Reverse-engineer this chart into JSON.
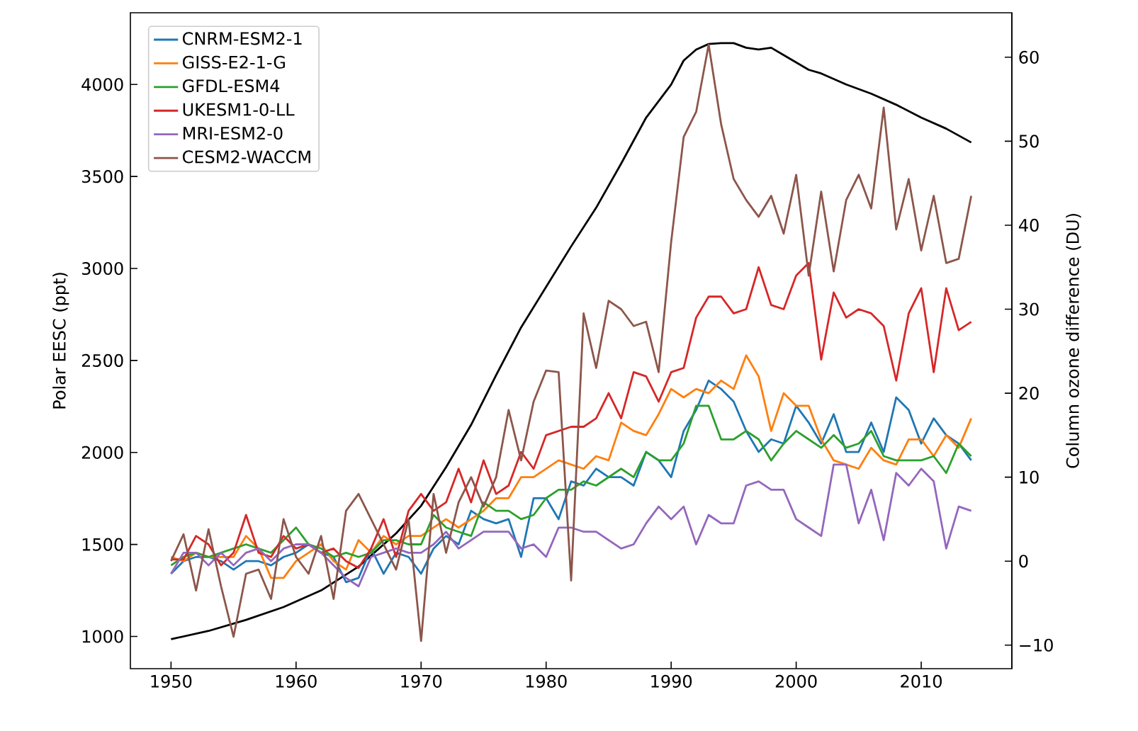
{
  "chart_data": {
    "type": "line",
    "ylabel": "Polar EESC (ppt)",
    "y2label": "Column ozone difference (DU)",
    "x": [
      1950,
      1951,
      1952,
      1953,
      1954,
      1955,
      1956,
      1957,
      1958,
      1959,
      1960,
      1961,
      1962,
      1963,
      1964,
      1965,
      1966,
      1967,
      1968,
      1969,
      1970,
      1971,
      1972,
      1973,
      1974,
      1975,
      1976,
      1977,
      1978,
      1979,
      1980,
      1981,
      1982,
      1983,
      1984,
      1985,
      1986,
      1987,
      1988,
      1989,
      1990,
      1991,
      1992,
      1993,
      1994,
      1995,
      1996,
      1997,
      1998,
      1999,
      2000,
      2001,
      2002,
      2003,
      2004,
      2005,
      2006,
      2007,
      2008,
      2009,
      2010,
      2011,
      2012,
      2013,
      2014
    ],
    "xlim": [
      1946.75,
      2017.25
    ],
    "xticks": [
      1950,
      1960,
      1970,
      1980,
      1990,
      2000,
      2010
    ],
    "ylim": [
      825,
      4390
    ],
    "yticks": [
      1000,
      1500,
      2000,
      2500,
      3000,
      3500,
      4000
    ],
    "y2lim": [
      -12.8,
      65.3
    ],
    "y2ticks": [
      {
        "value": -10,
        "label": "−10"
      },
      0,
      10,
      20,
      30,
      40,
      50,
      60
    ],
    "legend": "top left",
    "series": [
      {
        "color": "#000000",
        "x": [
          1950,
          1953,
          1956,
          1959,
          1962,
          1965,
          1968,
          1970,
          1972,
          1974,
          1976,
          1978,
          1980,
          1982,
          1984,
          1986,
          1988,
          1990,
          1991,
          1992,
          1993,
          1994,
          1995,
          1996,
          1997,
          1998,
          1999,
          2000,
          2001,
          2002,
          2004,
          2006,
          2008,
          2010,
          2012,
          2014
        ],
        "values": [
          985,
          1030,
          1090,
          1160,
          1250,
          1380,
          1560,
          1710,
          1920,
          2150,
          2420,
          2680,
          2900,
          3120,
          3330,
          3570,
          3820,
          4000,
          4130,
          4190,
          4220,
          4225,
          4225,
          4200,
          4190,
          4200,
          4160,
          4120,
          4080,
          4060,
          4000,
          3950,
          3890,
          3820,
          3760,
          3685
        ]
      },
      {
        "name": "CNRM-ESM2-1",
        "color": "#1f77b4",
        "axis": "y2",
        "values": [
          -1.5,
          0,
          0.5,
          0.5,
          0,
          -1,
          0,
          0,
          -0.5,
          0.5,
          1,
          2,
          1,
          0.5,
          -2.5,
          -2,
          1.5,
          -1.5,
          1,
          0.5,
          -1.5,
          1.5,
          3,
          2,
          6,
          5,
          4.5,
          5,
          0.5,
          7.5,
          7.5,
          5,
          9.5,
          9,
          11,
          10,
          10,
          9,
          13,
          12,
          10,
          15.5,
          18,
          21.5,
          20.5,
          19,
          15.5,
          13,
          14.5,
          14,
          18.5,
          16.5,
          14,
          17.5,
          13,
          13,
          16.5,
          13,
          19.5,
          18,
          14,
          17,
          15,
          14,
          12
        ]
      },
      {
        "name": "GISS-E2-1-G",
        "color": "#ff7f0e",
        "axis": "y2",
        "values": [
          0.5,
          0,
          1,
          0.5,
          0.5,
          0.5,
          3,
          1.5,
          -2,
          -2,
          0,
          1,
          2,
          0,
          -1,
          2.5,
          1,
          3,
          2,
          3,
          3,
          4,
          5,
          4,
          5,
          6,
          7.5,
          7.5,
          10,
          10,
          11,
          12,
          11.5,
          11,
          12.5,
          12,
          16.5,
          15.5,
          15,
          17.5,
          20.5,
          19.5,
          20.5,
          20,
          21.5,
          20.5,
          24.5,
          22,
          15.5,
          20,
          18.5,
          18.5,
          14.5,
          12,
          11.5,
          11,
          13.5,
          12,
          11.5,
          14.5,
          14.5,
          12.5,
          15,
          13.5,
          17
        ]
      },
      {
        "name": "GFDL-ESM4",
        "color": "#2ca02c",
        "axis": "y2",
        "values": [
          -0.5,
          0.5,
          1,
          0.5,
          1,
          1.5,
          2,
          1.5,
          1,
          2.5,
          4,
          2,
          1.5,
          0.5,
          1,
          0.5,
          1,
          2.5,
          2.5,
          2,
          2,
          5.5,
          4,
          3.5,
          3,
          7,
          6,
          6,
          5,
          5.5,
          7.5,
          8.5,
          8.5,
          9.5,
          9,
          10,
          11,
          10,
          13,
          12,
          12,
          14,
          18.5,
          18.5,
          14.5,
          14.5,
          15.5,
          14.5,
          12,
          14,
          15.5,
          14.5,
          13.5,
          15,
          13.5,
          14,
          15.5,
          12.5,
          12,
          12,
          12,
          12.5,
          10.5,
          14,
          12.5
        ]
      },
      {
        "name": "UKESM1-0-LL",
        "color": "#d62728",
        "axis": "y2",
        "values": [
          0.2,
          0.2,
          3,
          2,
          -0.5,
          1,
          5.5,
          1,
          0.5,
          3,
          1.5,
          2,
          1,
          1.5,
          0,
          -0.8,
          1.5,
          5,
          0.5,
          6,
          8,
          6,
          7,
          11,
          7,
          12,
          8,
          9,
          13,
          11,
          15,
          15.5,
          16,
          16,
          17,
          20,
          17,
          22.5,
          22,
          19,
          22.5,
          23,
          29,
          31.5,
          31.5,
          29.5,
          30,
          35,
          30.5,
          30,
          34,
          35.5,
          24,
          32,
          29,
          30,
          29.5,
          28,
          21.5,
          29.5,
          32.5,
          22.5,
          32.5,
          27.5,
          28.5
        ]
      },
      {
        "name": "MRI-ESM2-0",
        "color": "#9467bd",
        "axis": "y2",
        "values": [
          -1.5,
          1,
          1,
          -0.5,
          1,
          -0.5,
          1,
          1.5,
          0,
          1.5,
          2,
          2,
          1,
          -0.5,
          -2,
          -3,
          0.5,
          1,
          1.5,
          1,
          1,
          2,
          3.5,
          1.5,
          2.5,
          3.5,
          3.5,
          3.5,
          1.5,
          2,
          0.5,
          4,
          4,
          3.5,
          3.5,
          2.5,
          1.5,
          2,
          4.5,
          6.5,
          5,
          6.5,
          2,
          5.5,
          4.5,
          4.5,
          9,
          9.5,
          8.5,
          8.5,
          5,
          4,
          3,
          11.5,
          11.5,
          4.5,
          8.5,
          2.5,
          10.5,
          9,
          11,
          9.5,
          1.5,
          6.5,
          6
        ]
      },
      {
        "name": "CESM2-WACCM",
        "color": "#8c564b",
        "axis": "y2",
        "values": [
          0,
          3.2,
          -3.5,
          3.8,
          -3,
          -9,
          -1.5,
          -1,
          -4.5,
          5,
          0.5,
          -1.5,
          3,
          -4.5,
          6,
          8,
          5,
          2,
          -1,
          5,
          -9.5,
          8,
          1,
          7,
          10,
          6.5,
          10,
          18,
          12,
          19,
          22.7,
          22.5,
          -2.3,
          29.5,
          23,
          31,
          30,
          28,
          28.5,
          22.5,
          38,
          50.5,
          53.5,
          61.5,
          52,
          45.5,
          43,
          41,
          43.5,
          39,
          46,
          34,
          44,
          34.5,
          43,
          46,
          42,
          54,
          39.5,
          45.5,
          37,
          43.5,
          35.5,
          36,
          43.5
        ]
      }
    ]
  }
}
